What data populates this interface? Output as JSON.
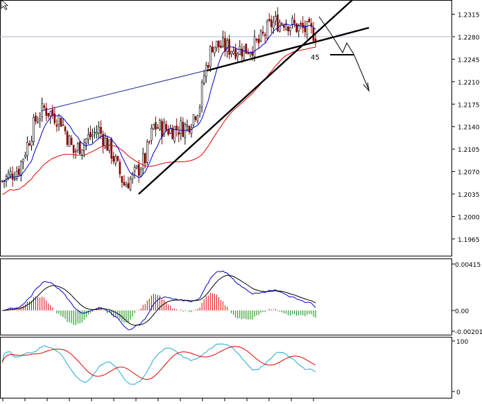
{
  "chart_data": [
    {
      "type": "candlestick",
      "panel": "price",
      "ylim": [
        1.194,
        1.2335
      ],
      "yticks": [
        "1.2315",
        "1.2280",
        "1.2245",
        "1.2210",
        "1.2175",
        "1.2140",
        "1.2105",
        "1.2070",
        "1.2035",
        "1.2000",
        "1.1965"
      ],
      "current_price_label": "1.2280",
      "annotation": "45",
      "colors": {
        "candle_up": "#000000",
        "candle_down": "#8b0000",
        "ma_fast": "#0000cc",
        "ma_slow": "#dd0000",
        "price_line": "#aab8d8"
      }
    },
    {
      "type": "line",
      "panel": "macd",
      "yticks": [
        "0.00415",
        "0.00",
        "-0.00201"
      ],
      "colors": {
        "main": "#0000cc",
        "signal": "#000000",
        "hist_up": "#dd0000",
        "hist_down": "#008800"
      }
    },
    {
      "type": "line",
      "panel": "stochastic",
      "yticks": [
        "100",
        "0"
      ],
      "colors": {
        "main": "#22aacc",
        "signal": "#dd0000"
      }
    }
  ]
}
